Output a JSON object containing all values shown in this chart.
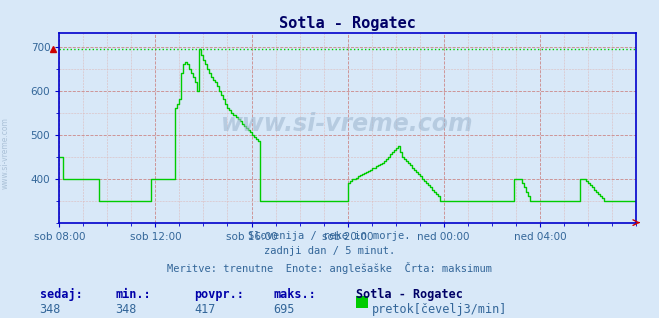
{
  "title": "Sotla - Rogatec",
  "bg_color": "#d8e8f8",
  "plot_bg_color": "#d8e8f8",
  "line_color": "#00cc00",
  "grid_color_major": "#cc8888",
  "grid_color_minor": "#ddbbbb",
  "axis_color": "#0000cc",
  "text_color": "#336699",
  "title_color": "#000066",
  "ylim": [
    300,
    730
  ],
  "yticks": [
    400,
    500,
    600,
    700
  ],
  "max_value": 695,
  "subtitle1": "Slovenija / reke in morje.",
  "subtitle2": "zadnji dan / 5 minut.",
  "subtitle3": "Meritve: trenutne  Enote: anglešaške  Črta: maksimum",
  "footer_labels": [
    "sedaj:",
    "min.:",
    "povpr.:",
    "maks.:"
  ],
  "footer_values": [
    "348",
    "348",
    "417",
    "695"
  ],
  "footer_station": "Sotla - Rogatec",
  "footer_legend": "pretok[čevelj3/min]",
  "watermark": "www.si-vreme.com",
  "xtick_labels": [
    "sob 08:00",
    "sob 12:00",
    "sob 16:00",
    "sob 20:00",
    "ned 00:00",
    "ned 04:00"
  ],
  "xtick_positions": [
    0,
    48,
    96,
    144,
    192,
    240
  ],
  "total_points": 289,
  "data": [
    450,
    450,
    400,
    400,
    400,
    400,
    400,
    400,
    400,
    400,
    400,
    400,
    400,
    400,
    400,
    400,
    400,
    400,
    400,
    400,
    348,
    348,
    348,
    348,
    348,
    348,
    348,
    348,
    348,
    348,
    348,
    348,
    348,
    348,
    348,
    348,
    348,
    348,
    348,
    348,
    348,
    348,
    348,
    348,
    348,
    348,
    400,
    400,
    400,
    400,
    400,
    400,
    400,
    400,
    400,
    400,
    400,
    400,
    560,
    570,
    580,
    640,
    660,
    665,
    660,
    650,
    640,
    630,
    620,
    600,
    695,
    680,
    670,
    660,
    650,
    640,
    630,
    625,
    620,
    610,
    600,
    590,
    580,
    570,
    560,
    555,
    550,
    545,
    540,
    535,
    530,
    525,
    520,
    515,
    510,
    505,
    500,
    495,
    490,
    485,
    348,
    348,
    348,
    348,
    348,
    348,
    348,
    348,
    348,
    348,
    348,
    348,
    348,
    348,
    348,
    348,
    348,
    348,
    348,
    348,
    348,
    348,
    348,
    348,
    348,
    348,
    348,
    348,
    348,
    348,
    348,
    348,
    348,
    348,
    348,
    348,
    348,
    348,
    348,
    348,
    348,
    348,
    348,
    348,
    390,
    395,
    398,
    400,
    402,
    405,
    408,
    410,
    413,
    415,
    418,
    420,
    423,
    425,
    428,
    430,
    433,
    435,
    440,
    445,
    450,
    455,
    460,
    465,
    470,
    475,
    460,
    450,
    445,
    440,
    435,
    430,
    425,
    420,
    415,
    410,
    405,
    400,
    395,
    390,
    385,
    380,
    375,
    370,
    365,
    360,
    348,
    348,
    348,
    348,
    348,
    348,
    348,
    348,
    348,
    348,
    348,
    348,
    348,
    348,
    348,
    348,
    348,
    348,
    348,
    348,
    348,
    348,
    348,
    348,
    348,
    348,
    348,
    348,
    348,
    348,
    348,
    348,
    348,
    348,
    348,
    348,
    348,
    400,
    400,
    400,
    400,
    390,
    380,
    370,
    360,
    350,
    348,
    348,
    348,
    348,
    348,
    348,
    348,
    348,
    348,
    348,
    348,
    348,
    348,
    348,
    348,
    348,
    348,
    348,
    348,
    348,
    348,
    348,
    348,
    348,
    400,
    400,
    398,
    395,
    390,
    385,
    380,
    375,
    370,
    365,
    360,
    355,
    350,
    348,
    348,
    348,
    348,
    348,
    348,
    348,
    348,
    348,
    348,
    348,
    348,
    348,
    348,
    348,
    348
  ]
}
